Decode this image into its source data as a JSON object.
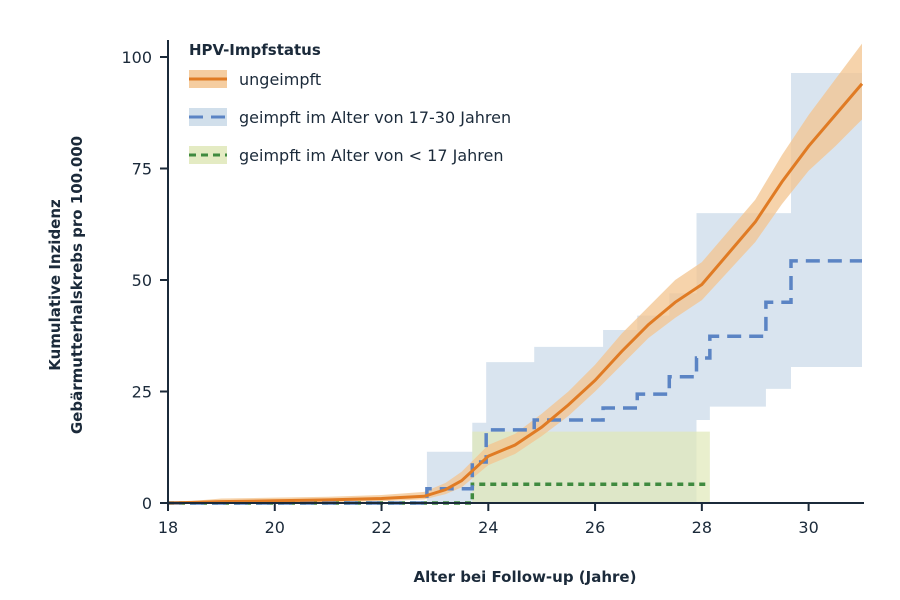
{
  "chart_data": {
    "type": "line",
    "title": "",
    "xlabel": "Alter bei Follow-up (Jahre)",
    "ylabel": [
      "Kumulative Inzidenz",
      "Gebärmutterhalskrebs pro 100.000"
    ],
    "xlim": [
      18,
      31
    ],
    "ylim": [
      0,
      100
    ],
    "xticks": [
      18,
      20,
      22,
      24,
      26,
      28,
      30
    ],
    "yticks": [
      0,
      25,
      50,
      75,
      100
    ],
    "grid": false,
    "legend": {
      "title": "HPV-Impfstatus",
      "placement": "top-left"
    },
    "series": [
      {
        "name": "ungeimpft",
        "style": "solid",
        "color": "#e07b24",
        "band_color": "#f3c48f",
        "x": [
          18,
          19,
          20,
          21,
          22,
          22.8,
          23.2,
          23.5,
          24,
          24.5,
          25,
          25.5,
          26,
          26.5,
          27,
          27.5,
          28,
          28.5,
          29,
          29.5,
          30,
          30.5,
          31
        ],
        "y": [
          0,
          0.3,
          0.5,
          0.7,
          1,
          1.5,
          3,
          5,
          10.5,
          13,
          17,
          22,
          27.5,
          34,
          40,
          45,
          49,
          56,
          63,
          72,
          80,
          87,
          94
        ],
        "ci_lower": [
          0,
          0,
          0,
          0.2,
          0.4,
          0.8,
          2,
          3.5,
          8.5,
          11,
          15,
          19.5,
          25,
          31,
          37,
          41.5,
          45.5,
          52,
          58.5,
          67,
          74.5,
          80,
          86
        ],
        "ci_upper": [
          0,
          1,
          1.2,
          1.4,
          1.8,
          2.5,
          4.5,
          7,
          13,
          15.5,
          20,
          25,
          31,
          38,
          44,
          50,
          54,
          61,
          68,
          78,
          87,
          95,
          103
        ]
      },
      {
        "name": "geimpft im Alter von 17-30 Jahren",
        "style": "dashed-step",
        "color": "#5b84c4",
        "band_color": "#c9d9e8",
        "x": [
          18,
          22.85,
          23.7,
          23.96,
          24.86,
          26.15,
          26.79,
          27.39,
          27.9,
          28.15,
          29.2,
          29.67,
          31
        ],
        "y": [
          0,
          3.2,
          9.2,
          16.4,
          18.6,
          21.3,
          24.4,
          28.3,
          32.5,
          37.4,
          45,
          54.3,
          54.3
        ],
        "ci_lower": [
          0,
          0,
          0,
          0,
          0,
          0,
          0,
          0,
          18.6,
          21.6,
          25.6,
          30.5,
          30.5
        ],
        "ci_upper": [
          0,
          11.5,
          18,
          31.6,
          35,
          38.8,
          42,
          47,
          65,
          65,
          65,
          96.4,
          96.4
        ]
      },
      {
        "name": "geimpft im Alter von < 17 Jahren",
        "style": "dotted-step",
        "color": "#3f8a3f",
        "band_color": "#dfe8b8",
        "x": [
          18,
          23.7,
          28.15
        ],
        "y": [
          0,
          4.2,
          4.2
        ],
        "ci_lower": [
          0,
          0,
          0
        ],
        "ci_upper": [
          0,
          16,
          16
        ]
      }
    ]
  }
}
